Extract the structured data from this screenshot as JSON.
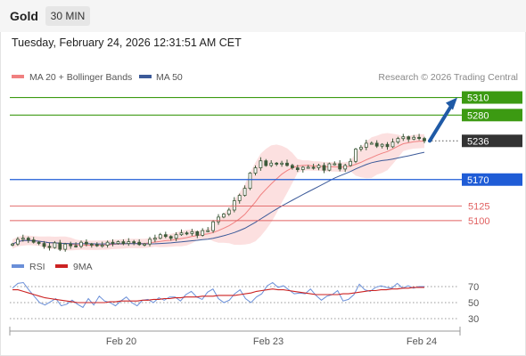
{
  "header": {
    "title": "Gold",
    "timeframe": "30 MIN"
  },
  "timestamp": "Tuesday, February 24, 2026 12:31:51 AM CET",
  "legend": {
    "ma20_label": "MA 20 + Bollinger Bands",
    "ma50_label": "MA 50",
    "credit": "Research © 2026 Trading Central",
    "rsi_label": "RSI",
    "rsi_ma_label": "9MA"
  },
  "colors": {
    "ma20": "#f08080",
    "ma50": "#3c5a99",
    "bands": "#fbd5d5",
    "candle": "#3d5a3a",
    "resistance": "#3c9a12",
    "pivot": "#1f5cd6",
    "support": "#e06060",
    "current": "#333333",
    "arrow": "#1f5aa6",
    "rsi": "#6a8fd8",
    "rsi_ma": "#cc2222"
  },
  "chart_data": {
    "type": "candlestick",
    "title": "Gold",
    "timeframe": "30 MIN",
    "ylim": [
      5033,
      5326
    ],
    "x_tick_labels": [
      "Feb 20",
      "Feb 23",
      "Feb 24"
    ],
    "close": [
      5060,
      5068,
      5070,
      5067,
      5063,
      5061,
      5056,
      5054,
      5062,
      5051,
      5060,
      5057,
      5056,
      5063,
      5060,
      5059,
      5057,
      5058,
      5063,
      5061,
      5064,
      5061,
      5064,
      5063,
      5059,
      5060,
      5068,
      5070,
      5076,
      5073,
      5070,
      5076,
      5079,
      5078,
      5081,
      5075,
      5083,
      5083,
      5098,
      5106,
      5111,
      5118,
      5134,
      5143,
      5155,
      5181,
      5190,
      5202,
      5194,
      5198,
      5197,
      5198,
      5194,
      5190,
      5187,
      5191,
      5191,
      5190,
      5194,
      5186,
      5197,
      5197,
      5188,
      5194,
      5201,
      5222,
      5225,
      5232,
      5232,
      5227,
      5230,
      5226,
      5234,
      5240,
      5243,
      5239,
      5242,
      5240,
      5236
    ],
    "levels": {
      "resistance": [
        5310,
        5280
      ],
      "current": 5236,
      "pivot": 5170,
      "support": [
        5125,
        5100
      ]
    },
    "level_labels": [
      "5310",
      "5280",
      "5236",
      "5170",
      "5125",
      "5100"
    ],
    "rsi_ticks": [
      70,
      50,
      30
    ],
    "rsi": [
      68,
      74,
      75,
      66,
      58,
      50,
      47,
      51,
      55,
      46,
      48,
      53,
      48,
      44,
      55,
      47,
      58,
      52,
      50,
      46,
      52,
      57,
      50,
      46,
      53,
      54,
      50,
      56,
      53,
      57,
      57,
      52,
      60,
      64,
      57,
      54,
      63,
      67,
      55,
      50,
      53,
      61,
      66,
      55,
      50,
      57,
      61,
      71,
      75,
      69,
      71,
      66,
      61,
      62,
      61,
      67,
      59,
      53,
      58,
      60,
      65,
      52,
      54,
      60,
      73,
      66,
      64,
      69,
      71,
      69,
      68,
      74,
      68,
      71,
      68,
      70,
      70
    ],
    "rsi_ma": [
      66,
      66,
      64,
      62,
      60,
      58,
      56,
      55,
      54,
      53,
      52,
      51,
      50,
      50,
      50,
      50,
      50,
      50,
      51,
      51,
      52,
      52,
      52,
      52,
      53,
      53,
      54,
      54,
      55,
      55,
      56,
      56,
      57,
      57,
      57,
      58,
      58,
      58,
      59,
      59,
      59,
      59,
      60,
      61,
      62,
      64,
      65,
      66,
      67,
      66,
      66,
      65,
      64,
      63,
      62,
      61,
      60,
      60,
      60,
      60,
      60,
      61,
      61,
      62,
      63,
      64,
      65,
      65,
      66,
      66,
      67,
      67,
      68,
      68,
      69,
      69,
      69
    ],
    "rsi_ylim": [
      20,
      80
    ]
  }
}
